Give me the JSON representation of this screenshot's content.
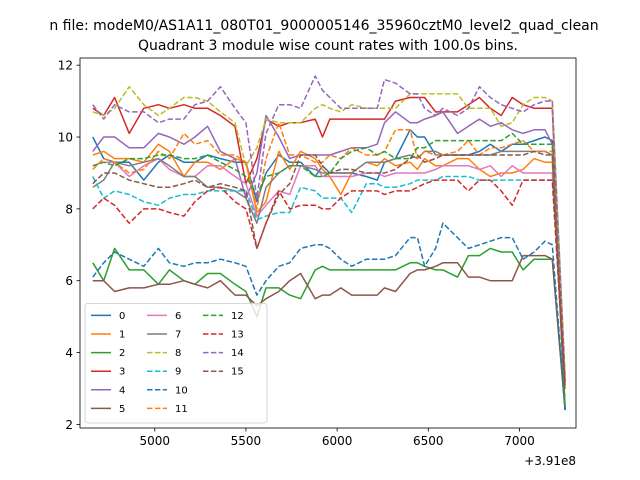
{
  "figure": {
    "suptitle": "n file: modeM0/AS1A11_080T01_9000005146_35960cztM0_level2_quad_clean",
    "title": "Quadrant 3 module wise count rates with 100.0s bins."
  },
  "chart_data": {
    "type": "line",
    "title": "Quadrant 3 module wise count rates with 100.0s bins.",
    "xlabel": "",
    "ylabel": "",
    "x_offset_label": "+3.91e8",
    "xlim": [
      4590,
      7310
    ],
    "ylim": [
      1.9,
      12.2
    ],
    "xticks": [
      5000,
      5500,
      6000,
      6500,
      7000
    ],
    "yticks": [
      2,
      4,
      6,
      8,
      10,
      12
    ],
    "grid": false,
    "legend_position": "lower-left",
    "x": [
      4660,
      4720,
      4780,
      4860,
      4940,
      5020,
      5080,
      5160,
      5220,
      5290,
      5360,
      5440,
      5500,
      5560,
      5610,
      5680,
      5740,
      5800,
      5880,
      5920,
      5960,
      6020,
      6080,
      6160,
      6220,
      6260,
      6320,
      6400,
      6440,
      6480,
      6540,
      6580,
      6660,
      6720,
      6780,
      6840,
      6900,
      6960,
      7020,
      7080,
      7140,
      7180,
      7250
    ],
    "series": [
      {
        "name": "0",
        "color": "#1f77b4",
        "dash": "solid",
        "values": [
          10.0,
          9.4,
          9.3,
          9.3,
          8.8,
          9.3,
          9.5,
          9.3,
          9.3,
          9.5,
          9.4,
          9.3,
          9.3,
          8.2,
          9.0,
          9.5,
          9.3,
          9.3,
          8.9,
          9.2,
          9.0,
          9.0,
          9.0,
          8.9,
          8.8,
          9.3,
          9.4,
          10.2,
          10.0,
          10.0,
          9.5,
          9.5,
          9.5,
          9.5,
          9.6,
          9.8,
          9.6,
          9.8,
          9.8,
          9.9,
          10.0,
          9.9,
          2.4
        ]
      },
      {
        "name": "1",
        "color": "#ff7f0e",
        "dash": "solid",
        "values": [
          9.5,
          9.6,
          9.4,
          9.4,
          9.3,
          9.8,
          9.6,
          8.9,
          9.3,
          9.3,
          9.1,
          9.4,
          9.3,
          7.9,
          8.2,
          9.6,
          9.1,
          9.6,
          9.4,
          9.1,
          8.9,
          8.4,
          9.0,
          9.3,
          9.2,
          9.4,
          9.2,
          9.3,
          9.1,
          9.4,
          9.2,
          9.2,
          9.4,
          9.4,
          9.1,
          8.9,
          9.0,
          9.0,
          9.1,
          9.4,
          9.3,
          9.3,
          3.0
        ]
      },
      {
        "name": "2",
        "color": "#2ca02c",
        "dash": "solid",
        "values": [
          6.5,
          6.0,
          6.9,
          6.3,
          6.3,
          5.9,
          6.3,
          6.0,
          5.9,
          6.2,
          6.2,
          5.9,
          5.7,
          5.0,
          5.8,
          5.8,
          5.6,
          5.5,
          6.3,
          6.4,
          6.3,
          6.3,
          6.3,
          6.3,
          6.3,
          6.3,
          6.3,
          6.5,
          6.5,
          6.4,
          6.3,
          6.3,
          6.1,
          6.7,
          6.7,
          6.9,
          6.8,
          6.8,
          6.3,
          6.6,
          6.6,
          6.6,
          2.4
        ]
      },
      {
        "name": "3",
        "color": "#d62728",
        "dash": "solid",
        "values": [
          10.8,
          10.6,
          11.1,
          10.1,
          10.8,
          10.9,
          10.8,
          10.9,
          10.8,
          10.8,
          10.6,
          10.3,
          8.7,
          9.4,
          10.5,
          10.3,
          10.4,
          10.4,
          10.5,
          10.0,
          10.5,
          10.5,
          10.5,
          10.5,
          10.5,
          10.5,
          11.0,
          11.1,
          11.1,
          11.1,
          10.7,
          10.7,
          10.7,
          10.9,
          11.1,
          10.8,
          10.6,
          11.1,
          10.9,
          10.8,
          10.8,
          10.8,
          2.4
        ]
      },
      {
        "name": "4",
        "color": "#9467bd",
        "dash": "solid",
        "values": [
          9.6,
          10.0,
          10.0,
          9.7,
          9.7,
          10.1,
          10.0,
          9.8,
          10.0,
          10.3,
          9.6,
          9.4,
          8.3,
          9.0,
          10.6,
          10.0,
          9.4,
          9.5,
          9.5,
          9.5,
          9.5,
          9.6,
          9.7,
          9.7,
          9.8,
          10.4,
          10.7,
          10.4,
          10.4,
          10.5,
          10.6,
          10.7,
          10.1,
          10.3,
          10.5,
          10.3,
          10.4,
          10.2,
          10.1,
          10.2,
          10.2,
          9.8,
          3.2
        ]
      },
      {
        "name": "5",
        "color": "#8c564b",
        "dash": "solid",
        "values": [
          6.0,
          6.0,
          5.7,
          5.8,
          5.8,
          5.9,
          5.9,
          6.0,
          5.9,
          5.8,
          6.0,
          5.6,
          5.6,
          5.3,
          5.5,
          5.7,
          6.0,
          6.2,
          5.5,
          5.6,
          5.6,
          5.8,
          5.6,
          5.6,
          5.6,
          5.8,
          5.7,
          6.2,
          6.3,
          6.3,
          6.4,
          6.5,
          6.5,
          6.1,
          6.1,
          6.0,
          6.0,
          6.0,
          6.7,
          6.7,
          6.7,
          6.6,
          2.4
        ]
      },
      {
        "name": "6",
        "color": "#e377c2",
        "dash": "solid",
        "values": [
          9.2,
          9.3,
          9.3,
          8.9,
          9.2,
          9.4,
          9.1,
          8.9,
          8.9,
          9.2,
          9.2,
          8.9,
          8.7,
          7.8,
          8.1,
          8.5,
          8.4,
          9.2,
          9.2,
          8.9,
          8.9,
          8.9,
          8.9,
          9.0,
          9.0,
          8.9,
          9.0,
          9.0,
          9.0,
          9.0,
          9.1,
          9.2,
          9.2,
          9.2,
          9.1,
          9.2,
          8.9,
          9.2,
          9.0,
          9.0,
          9.0,
          9.0,
          3.2
        ]
      },
      {
        "name": "7",
        "color": "#7f7f7f",
        "dash": "solid",
        "values": [
          8.6,
          8.8,
          9.3,
          9.2,
          9.3,
          9.4,
          9.2,
          8.9,
          8.9,
          8.6,
          8.6,
          8.5,
          8.3,
          7.6,
          8.6,
          9.0,
          9.2,
          9.2,
          9.1,
          9.0,
          9.0,
          9.0,
          9.0,
          9.3,
          9.3,
          9.3,
          9.4,
          9.5,
          9.4,
          9.6,
          9.6,
          9.5,
          9.5,
          9.5,
          9.5,
          9.5,
          9.6,
          9.6,
          9.6,
          9.6,
          9.6,
          9.5,
          2.4
        ]
      },
      {
        "name": "8",
        "color": "#bcbd22",
        "dash": "dashed",
        "values": [
          10.7,
          10.6,
          10.8,
          11.4,
          10.9,
          10.6,
          10.8,
          11.1,
          11.1,
          11.0,
          10.7,
          10.4,
          9.2,
          9.7,
          10.5,
          10.4,
          10.4,
          10.4,
          10.8,
          10.9,
          10.8,
          10.7,
          10.9,
          10.8,
          10.8,
          10.8,
          10.8,
          11.2,
          11.2,
          11.2,
          11.2,
          11.2,
          11.2,
          10.8,
          10.8,
          10.8,
          10.3,
          10.4,
          10.9,
          11.1,
          11.1,
          11.0,
          3.3
        ]
      },
      {
        "name": "9",
        "color": "#17becf",
        "dash": "dashed",
        "values": [
          8.9,
          8.3,
          8.5,
          8.4,
          8.2,
          8.1,
          8.3,
          8.4,
          8.4,
          8.5,
          8.5,
          8.5,
          8.5,
          7.7,
          7.8,
          7.9,
          7.9,
          8.6,
          8.5,
          8.3,
          8.3,
          8.3,
          7.9,
          8.7,
          8.7,
          8.6,
          8.6,
          8.7,
          8.8,
          8.8,
          8.8,
          8.9,
          8.9,
          8.9,
          8.8,
          8.8,
          8.8,
          8.8,
          8.8,
          8.8,
          8.8,
          8.8,
          3.0
        ]
      },
      {
        "name": "10",
        "color": "#1f77b4",
        "dash": "dashed",
        "values": [
          6.1,
          6.5,
          6.8,
          6.6,
          6.4,
          6.9,
          6.5,
          6.4,
          6.5,
          6.5,
          6.6,
          6.5,
          6.4,
          5.6,
          6.0,
          6.4,
          6.5,
          6.9,
          7.0,
          7.0,
          6.9,
          6.6,
          6.4,
          6.6,
          6.6,
          6.6,
          6.7,
          7.2,
          7.2,
          6.4,
          6.9,
          7.6,
          7.2,
          6.9,
          7.0,
          7.1,
          7.2,
          7.2,
          6.6,
          6.8,
          7.1,
          7.0,
          2.4
        ]
      },
      {
        "name": "11",
        "color": "#ff7f0e",
        "dash": "dashed",
        "values": [
          9.1,
          9.4,
          9.3,
          9.0,
          9.1,
          9.6,
          9.4,
          10.1,
          9.8,
          9.9,
          9.5,
          9.5,
          9.3,
          8.0,
          9.4,
          10.4,
          9.5,
          9.5,
          9.3,
          9.3,
          9.5,
          9.4,
          9.7,
          9.5,
          9.5,
          9.6,
          10.2,
          10.2,
          9.4,
          9.6,
          9.5,
          9.5,
          9.6,
          9.9,
          9.5,
          9.7,
          9.7,
          9.8,
          9.9,
          9.6,
          9.6,
          9.6,
          3.1
        ]
      },
      {
        "name": "12",
        "color": "#2ca02c",
        "dash": "dashed",
        "values": [
          9.2,
          9.3,
          9.2,
          9.4,
          9.4,
          9.5,
          9.5,
          9.4,
          9.4,
          9.5,
          9.3,
          9.1,
          8.9,
          8.4,
          8.9,
          9.0,
          9.2,
          9.2,
          8.9,
          8.9,
          9.0,
          9.4,
          9.6,
          9.7,
          9.5,
          9.6,
          9.4,
          9.4,
          9.7,
          9.7,
          9.9,
          9.9,
          9.9,
          9.9,
          9.9,
          9.9,
          9.9,
          10.1,
          9.8,
          9.8,
          9.8,
          9.8,
          2.5
        ]
      },
      {
        "name": "13",
        "color": "#d62728",
        "dash": "dashed",
        "values": [
          8.0,
          8.3,
          8.1,
          7.6,
          8.0,
          8.0,
          7.9,
          7.8,
          8.2,
          8.5,
          8.6,
          8.2,
          8.0,
          6.9,
          7.6,
          8.5,
          8.0,
          8.1,
          8.1,
          8.0,
          8.0,
          8.3,
          8.5,
          8.5,
          8.5,
          8.4,
          8.5,
          8.5,
          8.6,
          8.7,
          8.8,
          8.8,
          8.8,
          8.5,
          8.8,
          8.8,
          8.5,
          8.1,
          8.8,
          8.8,
          8.8,
          8.8,
          3.0
        ]
      },
      {
        "name": "14",
        "color": "#9467bd",
        "dash": "dashed",
        "values": [
          10.9,
          10.5,
          10.9,
          10.7,
          10.7,
          10.4,
          10.5,
          10.5,
          10.9,
          11.0,
          11.4,
          10.8,
          10.4,
          8.3,
          10.1,
          10.9,
          10.9,
          10.8,
          11.7,
          11.3,
          11.1,
          10.8,
          10.8,
          10.8,
          10.8,
          11.6,
          11.5,
          11.2,
          11.2,
          10.8,
          10.6,
          10.8,
          10.6,
          10.8,
          11.4,
          11.1,
          10.9,
          10.8,
          10.7,
          10.9,
          11.0,
          11.0,
          3.3
        ]
      },
      {
        "name": "15",
        "color": "#8c564b",
        "dash": "dashed",
        "values": [
          8.7,
          9.0,
          9.0,
          8.8,
          8.7,
          8.6,
          8.6,
          8.7,
          8.8,
          8.6,
          8.7,
          8.6,
          8.5,
          6.9,
          7.6,
          8.4,
          8.7,
          9.5,
          9.5,
          9.2,
          9.0,
          9.1,
          9.1,
          9.0,
          9.0,
          9.0,
          9.1,
          9.4,
          9.5,
          9.3,
          9.4,
          9.5,
          9.5,
          9.5,
          9.5,
          9.5,
          9.5,
          9.5,
          9.5,
          9.6,
          9.5,
          9.5,
          3.1
        ]
      }
    ]
  }
}
